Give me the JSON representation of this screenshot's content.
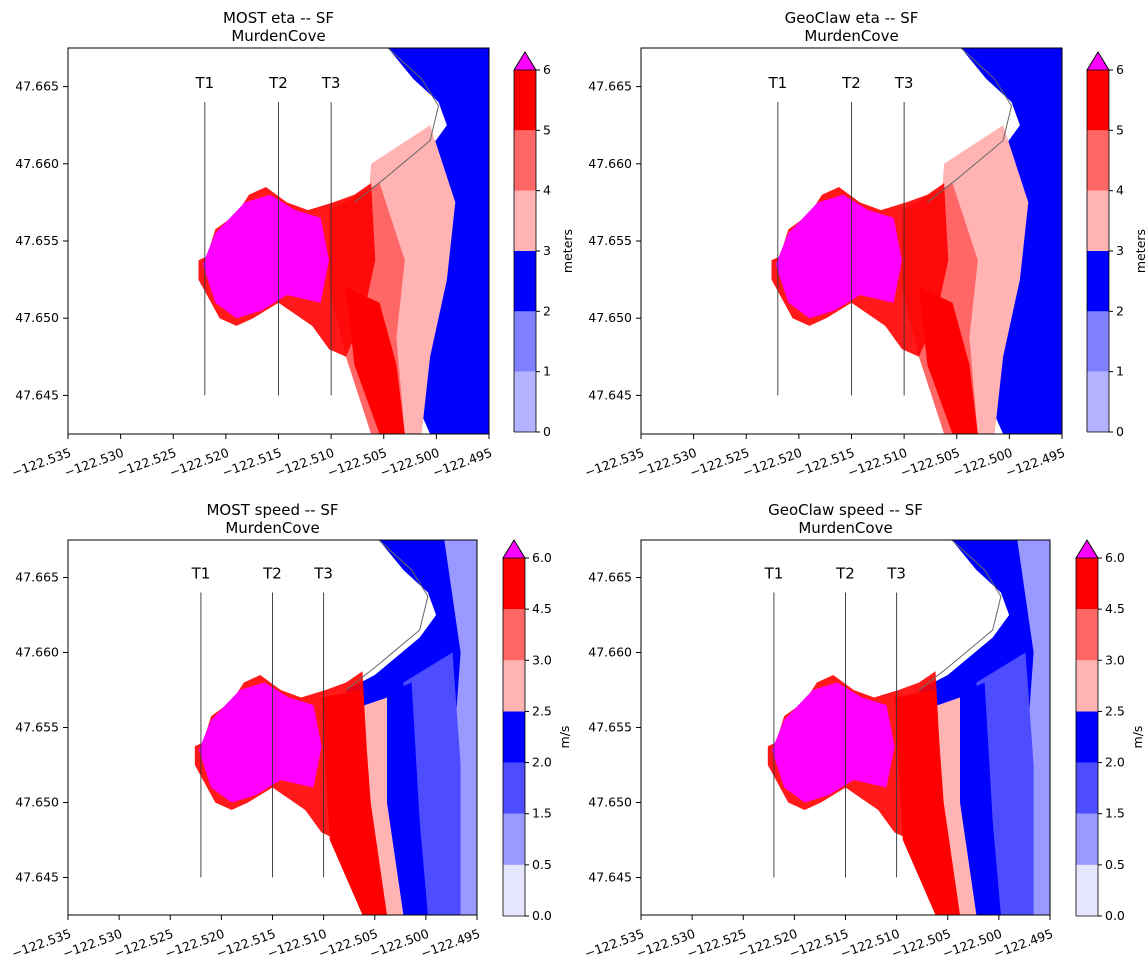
{
  "colors": {
    "eta_bands": [
      "#b3b3ff",
      "#8080ff",
      "#0000ff",
      "#ffb3b3",
      "#ff6666",
      "#ff0000"
    ],
    "speed_bands": [
      "#e6e6ff",
      "#9999ff",
      "#4d4dff",
      "#0000ff",
      "#ffb3b3",
      "#ff6666",
      "#ff0000"
    ],
    "over": "#ff00ff"
  },
  "chart_data": [
    {
      "type": "heatmap",
      "title": "MOST eta -- SF",
      "subtitle": "MurdenCove",
      "xlim": [
        -122.535,
        -122.495
      ],
      "ylim": [
        47.6425,
        47.6675
      ],
      "xticks": [
        "−122.535",
        "−122.530",
        "−122.525",
        "−122.520",
        "−122.515",
        "−122.510",
        "−122.505",
        "−122.500",
        "−122.495"
      ],
      "yticks": [
        "47.645",
        "47.650",
        "47.655",
        "47.660",
        "47.665"
      ],
      "colorbar": {
        "label": "meters",
        "levels": [
          "0",
          "1",
          "2",
          "3",
          "4",
          "5",
          "6"
        ],
        "extend": "max"
      },
      "transects": [
        {
          "name": "T1",
          "x": -122.522,
          "y": [
            47.645,
            47.664
          ]
        },
        {
          "name": "T2",
          "x": -122.515,
          "y": [
            47.645,
            47.664
          ]
        },
        {
          "name": "T3",
          "x": -122.51,
          "y": [
            47.645,
            47.664
          ]
        }
      ]
    },
    {
      "type": "heatmap",
      "title": "GeoClaw eta -- SF",
      "subtitle": "MurdenCove",
      "xlim": [
        -122.535,
        -122.495
      ],
      "ylim": [
        47.6425,
        47.6675
      ],
      "xticks": [
        "−122.535",
        "−122.530",
        "−122.525",
        "−122.520",
        "−122.515",
        "−122.510",
        "−122.505",
        "−122.500",
        "−122.495"
      ],
      "yticks": [
        "47.645",
        "47.650",
        "47.655",
        "47.660",
        "47.665"
      ],
      "colorbar": {
        "label": "meters",
        "levels": [
          "0",
          "1",
          "2",
          "3",
          "4",
          "5",
          "6"
        ],
        "extend": "max"
      },
      "transects": [
        {
          "name": "T1",
          "x": -122.522,
          "y": [
            47.645,
            47.664
          ]
        },
        {
          "name": "T2",
          "x": -122.515,
          "y": [
            47.645,
            47.664
          ]
        },
        {
          "name": "T3",
          "x": -122.51,
          "y": [
            47.645,
            47.664
          ]
        }
      ]
    },
    {
      "type": "heatmap",
      "title": "MOST speed -- SF",
      "subtitle": "MurdenCove",
      "xlim": [
        -122.535,
        -122.495
      ],
      "ylim": [
        47.6425,
        47.6675
      ],
      "xticks": [
        "−122.535",
        "−122.530",
        "−122.525",
        "−122.520",
        "−122.515",
        "−122.510",
        "−122.505",
        "−122.500",
        "−122.495"
      ],
      "yticks": [
        "47.645",
        "47.650",
        "47.655",
        "47.660",
        "47.665"
      ],
      "colorbar": {
        "label": "m/s",
        "levels": [
          "0.0",
          "0.5",
          "1.5",
          "2.0",
          "2.5",
          "3.0",
          "4.5",
          "6.0"
        ],
        "extend": "max"
      },
      "transects": [
        {
          "name": "T1",
          "x": -122.522,
          "y": [
            47.645,
            47.664
          ]
        },
        {
          "name": "T2",
          "x": -122.515,
          "y": [
            47.645,
            47.664
          ]
        },
        {
          "name": "T3",
          "x": -122.51,
          "y": [
            47.645,
            47.664
          ]
        }
      ]
    },
    {
      "type": "heatmap",
      "title": "GeoClaw speed -- SF",
      "subtitle": "MurdenCove",
      "xlim": [
        -122.535,
        -122.495
      ],
      "ylim": [
        47.6425,
        47.6675
      ],
      "xticks": [
        "−122.535",
        "−122.530",
        "−122.525",
        "−122.520",
        "−122.515",
        "−122.510",
        "−122.505",
        "−122.500",
        "−122.495"
      ],
      "yticks": [
        "47.645",
        "47.650",
        "47.655",
        "47.660",
        "47.665"
      ],
      "colorbar": {
        "label": "m/s",
        "levels": [
          "0.0",
          "0.5",
          "1.5",
          "2.0",
          "2.5",
          "3.0",
          "4.5",
          "6.0"
        ],
        "extend": "max"
      },
      "transects": [
        {
          "name": "T1",
          "x": -122.522,
          "y": [
            47.645,
            47.664
          ]
        },
        {
          "name": "T2",
          "x": -122.515,
          "y": [
            47.645,
            47.664
          ]
        },
        {
          "name": "T3",
          "x": -122.51,
          "y": [
            47.645,
            47.664
          ]
        }
      ]
    }
  ]
}
